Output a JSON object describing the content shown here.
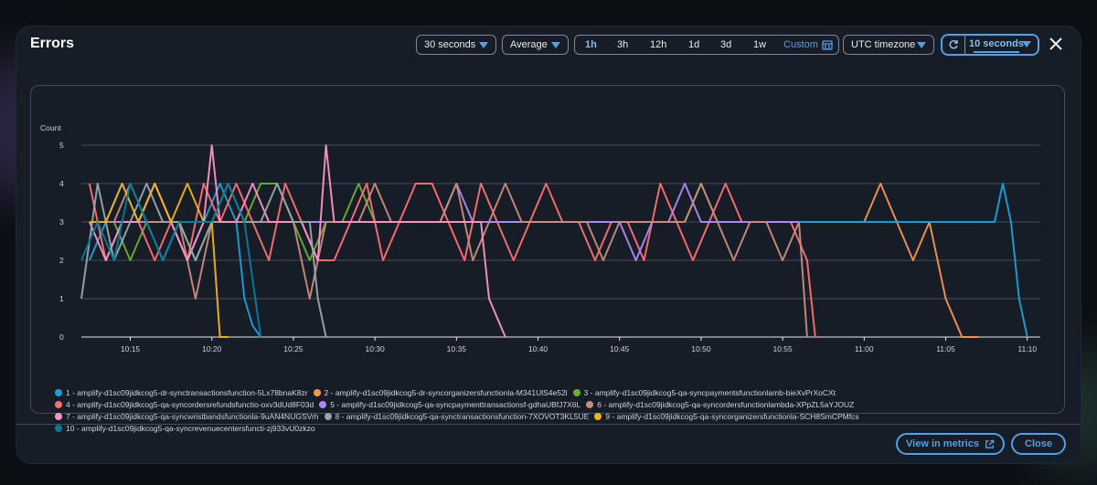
{
  "modal": {
    "title": "Errors",
    "period": "30 seconds",
    "statistic": "Average",
    "time_ranges": [
      "1h",
      "3h",
      "12h",
      "1d",
      "3d",
      "1w"
    ],
    "active_range": "1h",
    "custom_label": "Custom",
    "timezone": "UTC timezone",
    "refresh_interval": "10 seconds"
  },
  "footer": {
    "view_in_metrics": "View in metrics",
    "close": "Close"
  },
  "chart_data": {
    "type": "line",
    "ylabel": "Count",
    "ylim": [
      0,
      5
    ],
    "y_ticks": [
      "0",
      "1",
      "2",
      "3",
      "4",
      "5"
    ],
    "x_tick_labels": [
      "10:15",
      "10:20",
      "10:25",
      "10:30",
      "10:35",
      "10:40",
      "10:45",
      "10:50",
      "10:55",
      "11:00",
      "11:05",
      "11:10"
    ],
    "x_ticks": [
      15,
      20,
      25,
      30,
      35,
      40,
      45,
      50,
      55,
      60,
      65,
      70
    ],
    "x_unit": "minutes after 10:00",
    "grid": true,
    "legend_position": "bottom",
    "series": [
      {
        "name": "1 - amplify-d1sc09jidkcog5-dr-synctransactionsfunction-5Lx78bnaK8zr",
        "color": "#1e9fd8",
        "x": [
          12.5,
          13.5,
          14.5,
          15.5,
          16.5,
          17.5,
          18.5,
          19.5,
          20.5,
          21.5,
          22,
          22.5,
          23
        ],
        "y": [
          2,
          3,
          4,
          3,
          4,
          3,
          2,
          3,
          4,
          3,
          1,
          0.3,
          0
        ]
      },
      {
        "name": "2 - amplify-d1sc09jidkcog5-dr-syncorganizersfunctionla-M341UlS4e52l",
        "color": "#f89256",
        "x": [
          54,
          56,
          58,
          60,
          61,
          62,
          63,
          64,
          65,
          66,
          67
        ],
        "y": [
          3,
          3,
          3,
          3,
          4,
          3,
          2,
          3,
          1,
          0,
          0
        ]
      },
      {
        "name": "3 - amplify-d1sc09jidkcog5-qa-syncpaymentsfunctionlamb-bieXvPrXoCXt",
        "color": "#69ae34",
        "x": [
          13,
          14,
          15,
          16,
          17,
          18,
          19,
          20,
          21,
          22,
          23,
          24,
          25,
          26,
          27,
          28,
          29,
          30,
          31,
          32,
          33,
          34,
          35,
          36,
          37,
          38,
          39,
          40,
          41,
          42,
          43,
          44,
          45,
          46,
          47,
          48,
          49,
          50,
          51,
          52,
          53,
          54,
          55,
          56
        ],
        "y": [
          3,
          3,
          2,
          3,
          3,
          3,
          2,
          3,
          3,
          3,
          4,
          4,
          3,
          2,
          3,
          3,
          4,
          3,
          3,
          3,
          3,
          3,
          3,
          3,
          3,
          3,
          3,
          3,
          3,
          3,
          3,
          3,
          3,
          3,
          3,
          3,
          3,
          4,
          3,
          3,
          3,
          3,
          3,
          3
        ]
      },
      {
        "name": "4 - amplify-d1sc09jidkcog5-qa-syncordersrefundsfunctio-oxv3dUd8F03d",
        "color": "#fe6e73",
        "x": [
          12.5,
          13.5,
          14.5,
          15.5,
          16.5,
          17.5,
          18.5,
          19.5,
          20.5,
          21.5,
          22.5,
          23.5,
          24.5,
          25.5,
          26.5,
          27.5,
          28.5,
          29.5,
          30.5,
          31.5,
          32.5,
          33.5,
          34.5,
          35.5,
          36.5,
          37.5,
          38.5,
          39.5,
          40.5,
          41.5,
          42.5,
          43.5,
          44.5,
          45.5,
          46.5,
          47.5,
          48.5,
          49.5,
          50.5,
          51.5,
          52.5,
          53.5,
          54.5,
          55.5,
          56.5,
          57
        ],
        "y": [
          4,
          2,
          3,
          3,
          2,
          3,
          2,
          4,
          3,
          4,
          3,
          2,
          4,
          3,
          2,
          2,
          3,
          4,
          2,
          3,
          4,
          4,
          3,
          2,
          4,
          3,
          2,
          3,
          4,
          3,
          3,
          2,
          3,
          3,
          2,
          4,
          3,
          2,
          3,
          4,
          3,
          3,
          3,
          3,
          2,
          0
        ]
      },
      {
        "name": "5 - amplify-d1sc09jidkcog5-qa-syncpaymenttransactionsf-gdhaUBfJ7X6L",
        "color": "#b088f5",
        "x": [
          13,
          14,
          15,
          16,
          17,
          18,
          19,
          20,
          21,
          22,
          23,
          24,
          25,
          26,
          27,
          28,
          29,
          30,
          31,
          32,
          33,
          34,
          35,
          36,
          37,
          38,
          39,
          40,
          41,
          42,
          43,
          44,
          45,
          46,
          47,
          48,
          49,
          50,
          51,
          52,
          53,
          54,
          55,
          56
        ],
        "y": [
          3,
          3,
          3,
          3,
          2,
          3,
          3,
          3,
          3,
          3,
          3,
          3,
          3,
          3,
          3,
          3,
          3,
          3,
          3,
          3,
          3,
          3,
          4,
          3,
          3,
          3,
          3,
          3,
          3,
          3,
          3,
          3,
          3,
          2,
          3,
          3,
          4,
          3,
          3,
          3,
          3,
          3,
          3,
          3
        ]
      },
      {
        "name": "6 - amplify-d1sc09jidkcog5-qa-syncordersfunctionlambda-XPpZL5aYJOUZ",
        "color": "#c98b7b",
        "x": [
          13,
          14,
          15,
          16,
          17,
          18,
          19,
          20,
          21,
          22,
          23,
          24,
          25,
          26,
          27,
          28,
          29,
          30,
          31,
          32,
          33,
          34,
          35,
          36,
          37,
          38,
          39,
          40,
          41,
          42,
          43,
          44,
          45,
          46,
          47,
          48,
          49,
          50,
          51,
          52,
          53,
          54,
          55,
          56,
          56.5
        ],
        "y": [
          3,
          3,
          4,
          3,
          3,
          3,
          1,
          3,
          3,
          3,
          3,
          3,
          3,
          1,
          3,
          3,
          3,
          4,
          3,
          3,
          3,
          3,
          4,
          2,
          3,
          4,
          3,
          3,
          3,
          3,
          3,
          2,
          3,
          3,
          3,
          3,
          3,
          4,
          3,
          2,
          3,
          3,
          2,
          3,
          0
        ]
      },
      {
        "name": "7 - amplify-d1sc09jidkcog5-qa-syncwristbandsfunctionla-9uAN4NUGSVrh",
        "color": "#f994c5",
        "x": [
          12.5,
          13.5,
          14.5,
          15.5,
          16.5,
          17.5,
          18.5,
          19.5,
          20,
          20.5,
          21.5,
          22.5,
          23.5,
          24.5,
          25.5,
          26.5,
          27,
          27.5,
          28.5,
          29.5,
          30.5,
          31.5,
          32.5,
          33.5,
          34.5,
          35.5,
          36.5,
          37,
          38
        ],
        "y": [
          3,
          2,
          3,
          3,
          4,
          3,
          2,
          3,
          5,
          3,
          3,
          4,
          3,
          3,
          3,
          2,
          5,
          3,
          3,
          3,
          3,
          3,
          3,
          3,
          3,
          3,
          3,
          1,
          0
        ]
      },
      {
        "name": "8 - amplify-d1sc09jidkcog5-qa-synctransactionsfunction-7XOVOT3KL5UE",
        "color": "#99a5ad",
        "x": [
          12,
          13,
          14,
          15,
          16,
          17,
          18,
          19,
          20,
          21,
          22,
          23,
          24,
          25,
          26,
          26.5,
          27
        ],
        "y": [
          1,
          4,
          2,
          3,
          4,
          3,
          3,
          2,
          3,
          4,
          3,
          3,
          4,
          3,
          3,
          1,
          0
        ]
      },
      {
        "name": "9 - amplify-d1sc09jidkcog5-qa-syncorganizersfunctionla-SCH8SmCPMfcs",
        "color": "#f2b21b",
        "x": [
          12.5,
          13.5,
          14.5,
          15.5,
          16.5,
          17.5,
          18.5,
          19.5,
          20,
          20.5,
          21
        ],
        "y": [
          3,
          3,
          4,
          3,
          4,
          3,
          4,
          3,
          3,
          0,
          0
        ]
      },
      {
        "name": "10 - amplify-d1sc09jidkcog5-qa-syncrevenuecentersfuncti-zj933vU0zkzo",
        "color": "#037a9a",
        "x": [
          12,
          13,
          14,
          15,
          16,
          17,
          18,
          19,
          20,
          21,
          22,
          23
        ],
        "y": [
          2,
          3,
          2,
          4,
          3,
          2,
          3,
          3,
          3,
          4,
          3,
          0
        ]
      },
      {
        "name": "",
        "color": "#1e9fd8",
        "x": [
          56,
          58,
          60,
          62,
          64,
          66,
          68,
          68.5,
          69,
          69.5,
          70
        ],
        "y": [
          3,
          3,
          3,
          3,
          3,
          3,
          3,
          4,
          3,
          1,
          0
        ]
      }
    ]
  }
}
